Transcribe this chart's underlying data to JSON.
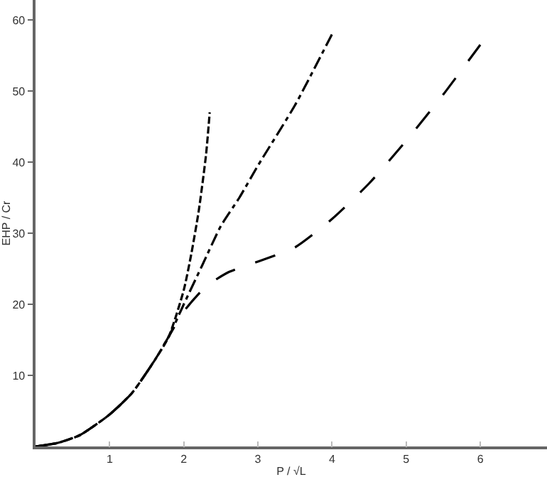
{
  "chart_data": {
    "type": "line",
    "xlabel": "P / √L",
    "ylabel": "EHP / Cr",
    "xlim": [
      0,
      6.9
    ],
    "ylim": [
      0,
      62.8
    ],
    "xticks": [
      1,
      2,
      3,
      4,
      5,
      6
    ],
    "yticks": [
      10,
      20,
      30,
      40,
      50,
      60
    ],
    "series": [
      {
        "color": "#000000",
        "line_style": "dashed",
        "x": [
          0,
          0.3,
          0.6,
          1,
          1.3,
          1.6,
          1.8,
          2,
          2.1,
          2.2,
          2.3,
          2.35
        ],
        "values": [
          0,
          0.5,
          1.6,
          4.5,
          7.5,
          12,
          15.5,
          22,
          27,
          33,
          41,
          47
        ]
      },
      {
        "color": "#000000",
        "line_style": "dashdot",
        "x": [
          0,
          0.3,
          0.6,
          1,
          1.3,
          1.6,
          1.8,
          2,
          2.25,
          2.5,
          2.75,
          3,
          3.5,
          4
        ],
        "values": [
          0,
          0.5,
          1.6,
          4.5,
          7.5,
          12,
          15.5,
          20,
          25.5,
          31,
          35,
          39.5,
          48,
          58
        ]
      },
      {
        "color": "#000000",
        "line_style": "longdash",
        "x": [
          0,
          0.3,
          0.6,
          1,
          1.3,
          1.6,
          1.8,
          2,
          2.3,
          2.6,
          3,
          3.5,
          4,
          4.5,
          5,
          5.5,
          6
        ],
        "values": [
          0,
          0.5,
          1.6,
          4.5,
          7.5,
          12,
          15.5,
          19,
          22.5,
          24.5,
          26,
          28,
          32,
          37,
          43,
          49.5,
          56.5
        ]
      }
    ]
  }
}
